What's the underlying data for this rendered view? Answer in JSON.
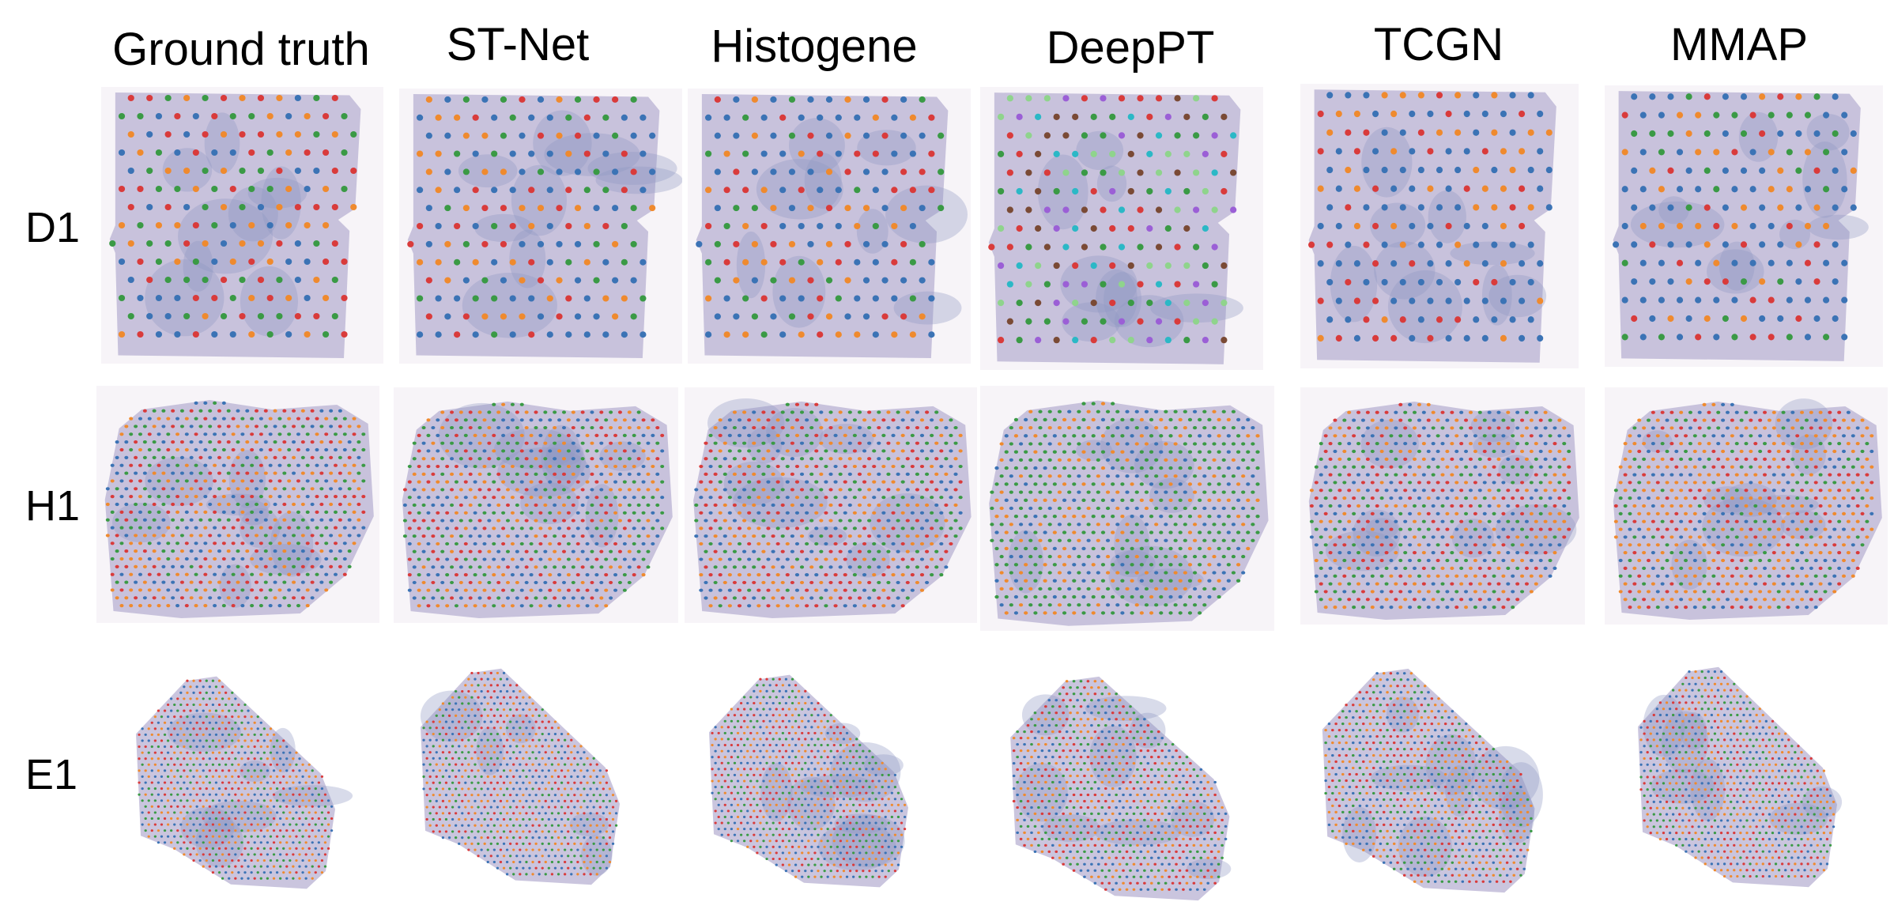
{
  "columns": [
    "Ground truth",
    "ST-Net",
    "Histogene",
    "DeepPT",
    "TCGN",
    "MMAP"
  ],
  "rows": [
    "D1",
    "H1",
    "E1"
  ],
  "colors": {
    "blue": "#3b73b5",
    "orange": "#ef8a2e",
    "green": "#3a9a45",
    "red": "#d93b3b",
    "cyan": "#2bb8c6",
    "purple": "#9b5fd6",
    "brown": "#7a4a35",
    "lightgreen": "#8fd48c",
    "tissue": "#b8b2d3",
    "tissue_dark": "#8f97c4",
    "background": "#f7f2f7"
  }
}
